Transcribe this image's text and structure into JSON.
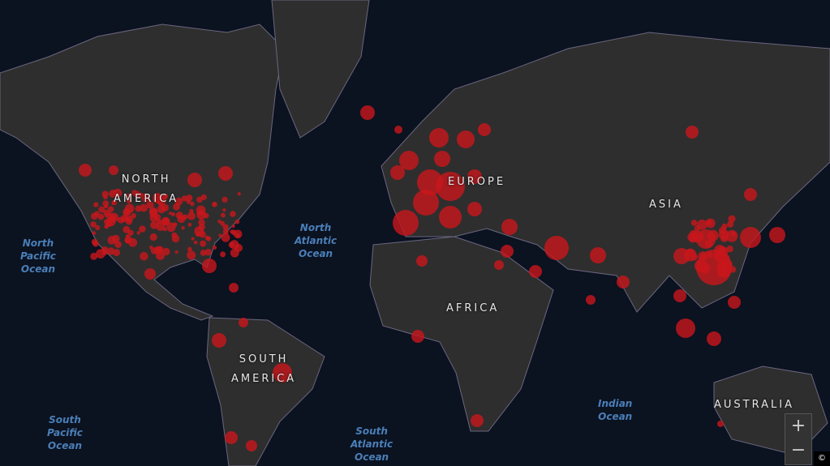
{
  "continents": {
    "north_america": "NORTH\nAMERICA",
    "south_america": "SOUTH\nAMERICA",
    "europe": "EUROPE",
    "asia": "ASIA",
    "africa": "AFRICA",
    "australia": "AUSTRALIA"
  },
  "oceans": {
    "north_pacific": "North\nPacific\nOcean",
    "north_atlantic": "North\nAtlantic\nOcean",
    "south_pacific": "South\nPacific\nOcean",
    "south_atlantic": "South\nAtlantic\nOcean",
    "indian": "Indian\nOcean"
  },
  "controls": {
    "zoom_in": "+",
    "zoom_out": "−",
    "attribution": "©"
  },
  "colors": {
    "land": "#2e2e2e",
    "ocean": "#0b1220",
    "bubble": "#c8161b",
    "border": "#6b6680"
  }
}
